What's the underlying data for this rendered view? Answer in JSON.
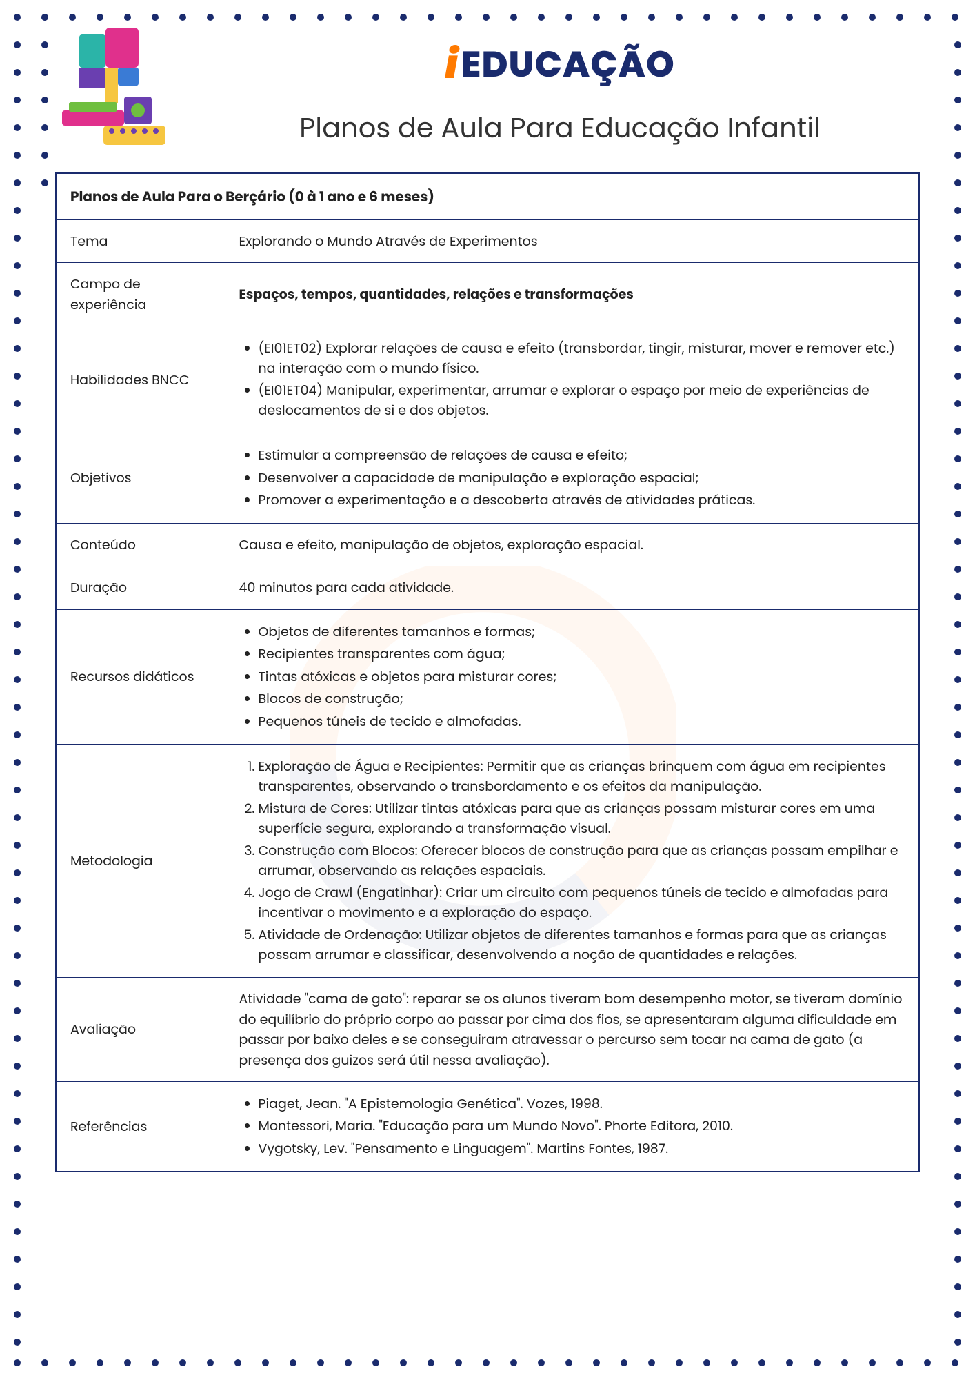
{
  "brand": {
    "name": "EDUCAÇÃO",
    "accent_color": "#ff7a00",
    "primary_color": "#1a2b6d"
  },
  "subtitle": "Planos de Aula Para Educação Infantil",
  "table": {
    "title": "Planos de Aula Para o Berçário (0 à 1 ano e 6 meses)",
    "rows": {
      "tema": {
        "label": "Tema",
        "value": "Explorando o Mundo Através de Experimentos"
      },
      "campo": {
        "label": "Campo de experiência",
        "value": "Espaços, tempos, quantidades, relações e transformações"
      },
      "habilidades": {
        "label": "Habilidades BNCC",
        "items": [
          "(EI01ET02) Explorar relações de causa e efeito (transbordar, tingir, misturar, mover e remover etc.) na interação com o mundo físico.",
          "(EI01ET04) Manipular, experimentar, arrumar e explorar o espaço por meio de experiências de deslocamentos de si e dos objetos."
        ]
      },
      "objetivos": {
        "label": "Objetivos",
        "items": [
          "Estimular a compreensão de relações de causa e efeito;",
          "Desenvolver a capacidade de manipulação e exploração espacial;",
          "Promover a experimentação e a descoberta através de atividades práticas."
        ]
      },
      "conteudo": {
        "label": "Conteúdo",
        "value": "Causa e efeito, manipulação de objetos, exploração espacial."
      },
      "duracao": {
        "label": "Duração",
        "value": "40 minutos para cada atividade."
      },
      "recursos": {
        "label": "Recursos didáticos",
        "items": [
          "Objetos de diferentes tamanhos e formas;",
          "Recipientes transparentes com água;",
          "Tintas atóxicas e objetos para misturar cores;",
          "Blocos de construção;",
          "Pequenos túneis de tecido e almofadas."
        ]
      },
      "metodologia": {
        "label": "Metodologia",
        "items": [
          "Exploração de Água e Recipientes: Permitir que as crianças brinquem com água em recipientes transparentes, observando o transbordamento e os efeitos da manipulação.",
          "Mistura de Cores: Utilizar tintas atóxicas para que as crianças possam misturar cores em uma superfície segura, explorando a transformação visual.",
          "Construção com Blocos: Oferecer blocos de construção para que as crianças possam empilhar e arrumar, observando as relações espaciais.",
          "Jogo de Crawl (Engatinhar): Criar um circuito com pequenos túneis de tecido e almofadas para incentivar o movimento e a exploração do espaço.",
          "Atividade de Ordenação: Utilizar objetos de diferentes tamanhos e formas para que as crianças possam arrumar e classificar, desenvolvendo a noção de quantidades e relações."
        ]
      },
      "avaliacao": {
        "label": "Avaliação",
        "value": "Atividade \"cama de gato\": reparar se os alunos tiveram bom desempenho motor, se tiveram domínio do equilíbrio do próprio corpo ao passar por cima dos fios, se apresentaram alguma dificuldade em passar por baixo deles e se conseguiram atravessar o percurso sem tocar na cama de gato (a presença dos guizos será útil nessa avaliação)."
      },
      "referencias": {
        "label": "Referências",
        "items": [
          "Piaget, Jean. \"A Epistemologia Genética\". Vozes, 1998.",
          "Montessori, Maria. \"Educação para um Mundo Novo\". Phorte Editora, 2010.",
          "Vygotsky, Lev. \"Pensamento e Linguagem\". Martins Fontes, 1987."
        ]
      }
    }
  },
  "dots": {
    "color": "#1a2b6d",
    "size": 10,
    "spacing": 40
  },
  "logo_shapes": {
    "colors": {
      "teal": "#2bb4a8",
      "magenta": "#e0308c",
      "yellow": "#f6c640",
      "purple": "#6a3fb0",
      "green": "#6fbf3f",
      "blue": "#3a7bd5",
      "orange": "#ff7a00"
    }
  }
}
